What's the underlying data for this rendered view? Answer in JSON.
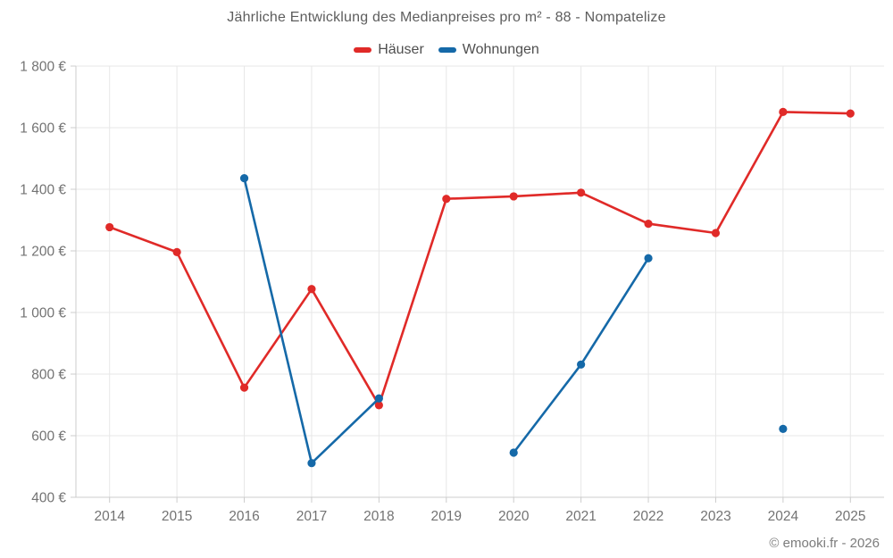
{
  "title": "Jährliche Entwicklung des Medianpreises pro m² - 88 - Nompatelize",
  "footer": {
    "credit": "© emooki.fr - 2026"
  },
  "chart_data": {
    "type": "line",
    "title": "Jährliche Entwicklung des Medianpreises pro m² - 88 - Nompatelize",
    "categories": [
      "2014",
      "2015",
      "2016",
      "2017",
      "2018",
      "2019",
      "2020",
      "2021",
      "2022",
      "2023",
      "2024",
      "2025"
    ],
    "series": [
      {
        "name": "Häuser",
        "color": "#e02a28",
        "values": [
          1277,
          1196,
          756,
          1076,
          699,
          1369,
          1377,
          1389,
          1288,
          1258,
          1651,
          1646
        ]
      },
      {
        "name": "Wohnungen",
        "color": "#1569a8",
        "values": [
          null,
          null,
          1436,
          511,
          721,
          null,
          545,
          831,
          1176,
          null,
          622,
          null
        ]
      }
    ],
    "ylim": [
      400,
      1800
    ],
    "ytick_step": 200,
    "ytick_labels": [
      "400 €",
      "600 €",
      "800 €",
      "1 000 €",
      "1 200 €",
      "1 400 €",
      "1 600 €",
      "1 800 €"
    ],
    "xlabel": "",
    "ylabel": "",
    "grid": true,
    "legend_position": "top",
    "colors": {
      "gridline": "#e7e7e7",
      "axis_line": "#cccccc",
      "tick_label": "#737373"
    }
  }
}
